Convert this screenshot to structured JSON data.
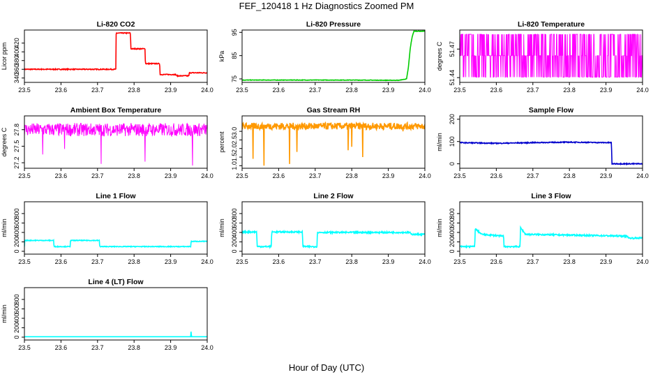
{
  "title": "FEF_120418  1 Hz Diagnostics Zoomed PM",
  "xlabel": "Hour of Day (UTC)",
  "chart_data": [
    {
      "type": "line",
      "title": "Li-820 CO2",
      "ylabel": "Licor ppm",
      "color": "#ff0000",
      "xlim": [
        23.5,
        24.0
      ],
      "xticks": [
        "23.5",
        "23.6",
        "23.7",
        "23.8",
        "23.9",
        "24.0"
      ],
      "ylim": [
        330,
        450
      ],
      "yticks": [
        340,
        360,
        380,
        400,
        420
      ],
      "x": [
        23.5,
        23.6,
        23.7,
        23.75,
        23.751,
        23.79,
        23.791,
        23.83,
        23.831,
        23.87,
        23.871,
        23.915,
        23.916,
        23.95,
        23.951,
        24.0
      ],
      "y": [
        360,
        360,
        360,
        360,
        443,
        443,
        407,
        407,
        373,
        373,
        348,
        348,
        345,
        345,
        352,
        352
      ],
      "noise": 1
    },
    {
      "type": "line",
      "title": "Li-820 Pressure",
      "ylabel": "kPa",
      "color": "#00cc00",
      "xlim": [
        23.5,
        24.0
      ],
      "xticks": [
        "23.5",
        "23.6",
        "23.7",
        "23.8",
        "23.9",
        "24.0"
      ],
      "ylim": [
        73.5,
        96
      ],
      "yticks": [
        75,
        85,
        95
      ],
      "x": [
        23.5,
        23.6,
        23.7,
        23.8,
        23.9,
        23.93,
        23.95,
        23.955,
        23.96,
        23.965,
        23.97,
        24.0
      ],
      "y": [
        74.5,
        74.5,
        74.5,
        74.5,
        74.4,
        74.4,
        75,
        80,
        88,
        93,
        95.5,
        95.5
      ],
      "noise": 0.1
    },
    {
      "type": "line",
      "title": "Li-820 Temperature",
      "ylabel": "degrees C",
      "color": "#ff00ff",
      "xlim": [
        23.5,
        24.0
      ],
      "xticks": [
        "23.5",
        "23.6",
        "23.7",
        "23.8",
        "23.9",
        "24.0"
      ],
      "ylim": [
        51.435,
        51.49
      ],
      "yticks": [
        51.44,
        51.47
      ],
      "x": [
        23.5,
        24.0
      ],
      "y": [
        51.463,
        51.463
      ],
      "levels": [
        51.4405,
        51.463,
        51.4855
      ],
      "noise": 0
    },
    {
      "type": "line",
      "title": "Ambient Box Temperature",
      "ylabel": "degrees C",
      "color": "#ff00ff",
      "xlim": [
        23.5,
        24.0
      ],
      "xticks": [
        "23.5",
        "23.6",
        "23.7",
        "23.8",
        "23.9",
        "24.0"
      ],
      "ylim": [
        27.1,
        28.05
      ],
      "yticks": [
        27.2,
        27.5,
        27.8
      ],
      "x": [
        23.5,
        24.0
      ],
      "y": [
        27.8,
        27.8
      ],
      "noise": 0.12,
      "spikes": [
        [
          23.55,
          27.35
        ],
        [
          23.61,
          27.45
        ],
        [
          23.71,
          27.18
        ],
        [
          23.83,
          27.22
        ],
        [
          23.96,
          27.15
        ]
      ]
    },
    {
      "type": "line",
      "title": "Gas Stream RH",
      "ylabel": "percent",
      "color": "#ff9900",
      "xlim": [
        23.5,
        24.0
      ],
      "xticks": [
        "23.5",
        "23.6",
        "23.7",
        "23.8",
        "23.9",
        "24.0"
      ],
      "ylim": [
        0.85,
        3.9
      ],
      "yticks": [
        1.0,
        1.5,
        2.0,
        2.5,
        3.0
      ],
      "x": [
        23.5,
        24.0
      ],
      "y": [
        3.3,
        3.3
      ],
      "noise": 0.2,
      "spikes": [
        [
          23.53,
          1.4
        ],
        [
          23.56,
          1.0
        ],
        [
          23.63,
          1.1
        ],
        [
          23.65,
          1.8
        ],
        [
          23.79,
          1.9
        ],
        [
          23.8,
          2.1
        ],
        [
          23.83,
          1.5
        ],
        [
          23.94,
          3.0
        ]
      ]
    },
    {
      "type": "line",
      "title": "Sample Flow",
      "ylabel": "ml/min",
      "color": "#0000cc",
      "xlim": [
        23.5,
        24.0
      ],
      "xticks": [
        "23.5",
        "23.6",
        "23.7",
        "23.8",
        "23.9",
        "24.0"
      ],
      "ylim": [
        -20,
        215
      ],
      "yticks": [
        0,
        100,
        200
      ],
      "x": [
        23.5,
        23.6,
        23.7,
        23.8,
        23.9,
        23.915,
        23.916,
        24.0
      ],
      "y": [
        95,
        92,
        95,
        97,
        95,
        95,
        0,
        0
      ],
      "noise": 2
    },
    {
      "type": "line",
      "title": "Line 1 Flow",
      "ylabel": "ml/min",
      "color": "#00ffff",
      "xlim": [
        23.5,
        24.0
      ],
      "xticks": [
        "23.5",
        "23.6",
        "23.7",
        "23.8",
        "23.9",
        "24.0"
      ],
      "ylim": [
        -60,
        1050
      ],
      "yticks": [
        0,
        200,
        400,
        600,
        800
      ],
      "x": [
        23.5,
        23.501,
        23.58,
        23.581,
        23.625,
        23.626,
        23.705,
        23.706,
        23.955,
        23.956,
        24.0
      ],
      "y": [
        100,
        230,
        230,
        100,
        100,
        230,
        230,
        100,
        100,
        210,
        210
      ],
      "noise": 8
    },
    {
      "type": "line",
      "title": "Line 2 Flow",
      "ylabel": "ml/min",
      "color": "#00ffff",
      "xlim": [
        23.5,
        24.0
      ],
      "xticks": [
        "23.5",
        "23.6",
        "23.7",
        "23.8",
        "23.9",
        "24.0"
      ],
      "ylim": [
        -60,
        1050
      ],
      "yticks": [
        0,
        200,
        400,
        600,
        800
      ],
      "x": [
        23.5,
        23.54,
        23.541,
        23.58,
        23.581,
        23.665,
        23.666,
        23.705,
        23.706,
        23.96,
        23.961,
        24.0
      ],
      "y": [
        410,
        410,
        100,
        100,
        410,
        410,
        100,
        100,
        400,
        400,
        360,
        360
      ],
      "noise": 15
    },
    {
      "type": "line",
      "title": "Line 3 Flow",
      "ylabel": "ml/min",
      "color": "#00ffff",
      "xlim": [
        23.5,
        24.0
      ],
      "xticks": [
        "23.5",
        "23.6",
        "23.7",
        "23.8",
        "23.9",
        "24.0"
      ],
      "ylim": [
        -60,
        1050
      ],
      "yticks": [
        0,
        200,
        400,
        600,
        800
      ],
      "x": [
        23.5,
        23.541,
        23.542,
        23.56,
        23.62,
        23.621,
        23.665,
        23.666,
        23.68,
        23.9,
        23.96,
        23.961,
        24.0
      ],
      "y": [
        100,
        100,
        480,
        360,
        320,
        100,
        100,
        500,
        360,
        330,
        320,
        280,
        280
      ],
      "noise": 15
    },
    {
      "type": "line",
      "title": "Line 4 (LT) Flow",
      "ylabel": "ml/min",
      "color": "#00ffff",
      "xlim": [
        23.5,
        24.0
      ],
      "xticks": [
        "23.5",
        "23.6",
        "23.7",
        "23.8",
        "23.9",
        "24.0"
      ],
      "ylim": [
        -60,
        1050
      ],
      "yticks": [
        0,
        200,
        400,
        600,
        800
      ],
      "x": [
        23.5,
        23.955,
        23.956,
        23.957,
        23.96,
        24.0
      ],
      "y": [
        10,
        10,
        150,
        10,
        10,
        10
      ],
      "noise": 0
    }
  ]
}
